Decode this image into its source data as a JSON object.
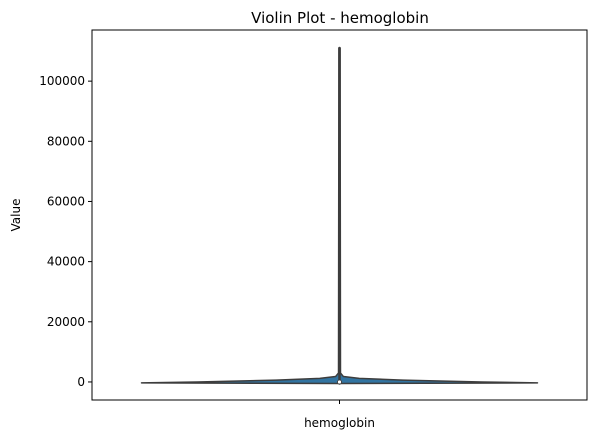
{
  "chart_data": {
    "type": "violin",
    "title": "Violin Plot - hemoglobin",
    "xlabel": "",
    "ylabel": "Value",
    "categories": [
      "hemoglobin"
    ],
    "ylim": [
      -6000,
      117000
    ],
    "yticks": [
      0,
      20000,
      40000,
      60000,
      80000,
      100000
    ],
    "ytick_labels": [
      "0",
      "20000",
      "40000",
      "60000",
      "80000",
      "100000"
    ],
    "grid": false,
    "legend": "none",
    "colors": {
      "body_fill": "#3274a1",
      "body_edge": "#3d3d3d",
      "whisker": "#3d3d3d",
      "median_marker": "#ffffff",
      "axes": "#000000"
    },
    "series": [
      {
        "category": "hemoglobin",
        "min": -500,
        "max": 111000,
        "median": 0,
        "q1": -150,
        "q3": 300,
        "density_profile": [
          {
            "y": -500,
            "half_width": 0.0
          },
          {
            "y": -300,
            "half_width": 1.0
          },
          {
            "y": 0,
            "half_width": 0.72
          },
          {
            "y": 600,
            "half_width": 0.32
          },
          {
            "y": 1200,
            "half_width": 0.1
          },
          {
            "y": 1800,
            "half_width": 0.02
          },
          {
            "y": 3000,
            "half_width": 0.005
          },
          {
            "y": 111000,
            "half_width": 0.003
          }
        ]
      }
    ]
  }
}
